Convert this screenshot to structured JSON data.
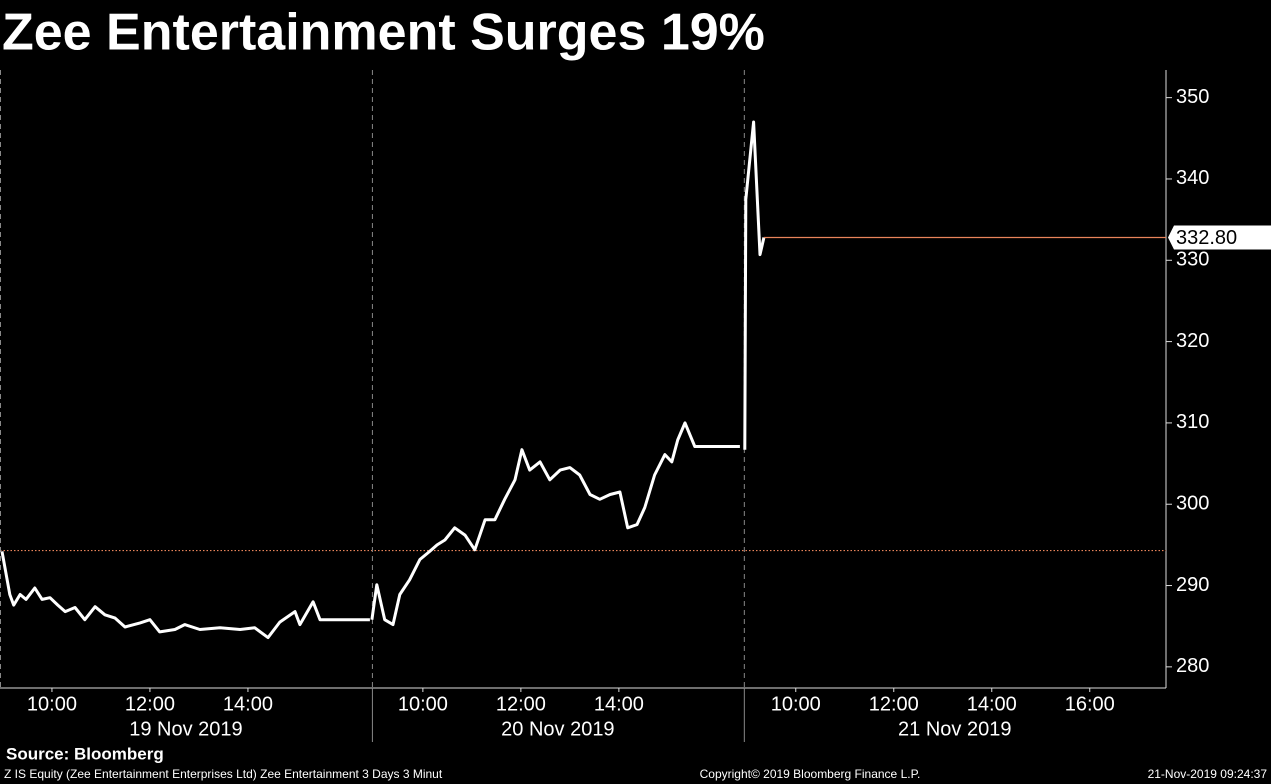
{
  "chart_data": {
    "type": "line",
    "title": "Zee Entertainment Surges 19%",
    "color": "#ffffff",
    "ylim": [
      277.4,
      353.4
    ],
    "yticks": [
      280,
      290,
      300,
      310,
      320,
      330,
      340,
      350
    ],
    "reference_line": {
      "value": 294.3,
      "color": "#e8845a"
    },
    "last_value": {
      "value": 332.8,
      "label": "332.80",
      "color": "#e8845a"
    },
    "panels": [
      {
        "label": "19 Nov 2019",
        "xlim": [
          8.94,
          16.53
        ],
        "xticks": [
          {
            "value": 10,
            "label": "10:00"
          },
          {
            "value": 12,
            "label": "12:00"
          },
          {
            "value": 14,
            "label": "14:00"
          }
        ],
        "x": [
          8.98,
          9.14,
          9.22,
          9.35,
          9.47,
          9.65,
          9.8,
          9.96,
          10.12,
          10.27,
          10.47,
          10.67,
          10.88,
          11.08,
          11.29,
          11.49,
          11.8,
          12.0,
          12.2,
          12.51,
          12.71,
          13.02,
          13.43,
          13.84,
          14.14,
          14.41,
          14.65,
          14.96,
          15.06,
          15.33,
          15.47,
          16.49
        ],
        "values": [
          294.2,
          288.9,
          287.6,
          288.9,
          288.3,
          289.7,
          288.3,
          288.5,
          287.6,
          286.8,
          287.3,
          285.8,
          287.4,
          286.4,
          286.0,
          284.9,
          285.4,
          285.8,
          284.3,
          284.6,
          285.2,
          284.6,
          284.8,
          284.6,
          284.8,
          283.6,
          285.5,
          286.8,
          285.2,
          288.0,
          285.8,
          285.8
        ]
      },
      {
        "label": "20 Nov 2019",
        "xlim": [
          8.96,
          16.55
        ],
        "xticks": [
          {
            "value": 10,
            "label": "10:00"
          },
          {
            "value": 12,
            "label": "12:00"
          },
          {
            "value": 14,
            "label": "14:00"
          }
        ],
        "x": [
          8.96,
          9.06,
          9.22,
          9.39,
          9.53,
          9.73,
          9.94,
          10.14,
          10.29,
          10.45,
          10.65,
          10.86,
          11.06,
          11.27,
          11.47,
          11.67,
          11.88,
          12.02,
          12.18,
          12.39,
          12.59,
          12.8,
          13.0,
          13.2,
          13.41,
          13.61,
          13.82,
          14.02,
          14.18,
          14.37,
          14.53,
          14.73,
          14.94,
          15.08,
          15.2,
          15.35,
          15.55,
          16.47
        ],
        "values": [
          285.8,
          290.1,
          285.8,
          285.2,
          288.9,
          290.7,
          293.2,
          294.2,
          295.0,
          295.6,
          297.1,
          296.2,
          294.4,
          298.1,
          298.1,
          300.6,
          303.0,
          306.7,
          304.2,
          305.2,
          303.0,
          304.2,
          304.5,
          303.6,
          301.2,
          300.6,
          301.2,
          301.5,
          297.1,
          297.5,
          299.6,
          303.6,
          306.1,
          305.2,
          307.9,
          310.0,
          307.1,
          307.1
        ]
      },
      {
        "label": "21 Nov 2019",
        "xlim": [
          8.94,
          17.55
        ],
        "xticks": [
          {
            "value": 10,
            "label": "10:00"
          },
          {
            "value": 12,
            "label": "12:00"
          },
          {
            "value": 14,
            "label": "14:00"
          },
          {
            "value": 16,
            "label": "16:00"
          }
        ],
        "x": [
          8.96,
          8.98,
          9.14,
          9.27,
          9.35
        ],
        "values": [
          306.7,
          337.5,
          347.0,
          330.7,
          332.8
        ]
      }
    ],
    "source": "Source: Bloomberg",
    "footer_left": "Z IS Equity (Zee Entertainment Enterprises Ltd) Zee Entertainment 3 Days 3 Minut",
    "footer_center": "Copyright© 2019 Bloomberg Finance L.P.",
    "footer_right": "21-Nov-2019 09:24:37"
  }
}
